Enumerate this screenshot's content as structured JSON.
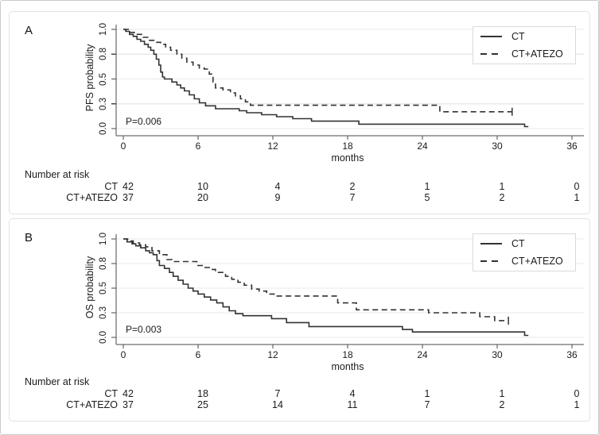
{
  "colors": {
    "curve": "#323232",
    "grid": "#e9e9eb",
    "axis": "#4a4a4a",
    "panel_border": "#e2e2e2",
    "outer_border": "#cbcbcb",
    "legend_border": "#dadada",
    "text": "#1b1b1b"
  },
  "chart_data": [
    {
      "type": "line",
      "subtype": "kaplan-meier-step",
      "letter": "A",
      "ylabel": "PFS probability",
      "xlabel": "months",
      "p_value": "P=0.006",
      "xlim": [
        0,
        36
      ],
      "ylim": [
        0,
        1
      ],
      "grid": true,
      "legend_position": "top-right",
      "x_ticks": [
        0,
        6,
        12,
        18,
        24,
        30,
        36
      ],
      "y_ticks": [
        {
          "label": "1.0",
          "value": 1.0
        },
        {
          "label": "0.8",
          "value": 0.75
        },
        {
          "label": "0.5",
          "value": 0.5
        },
        {
          "label": "0.3",
          "value": 0.25
        },
        {
          "label": "0.0",
          "value": 0.0
        }
      ],
      "series": [
        {
          "name": "CT",
          "line": "solid",
          "steps": [
            [
              0,
              1.0
            ],
            [
              0.2,
              0.98
            ],
            [
              0.5,
              0.95
            ],
            [
              0.8,
              0.93
            ],
            [
              1.1,
              0.9
            ],
            [
              1.4,
              0.88
            ],
            [
              1.7,
              0.85
            ],
            [
              2.0,
              0.82
            ],
            [
              2.2,
              0.79
            ],
            [
              2.45,
              0.75
            ],
            [
              2.65,
              0.7
            ],
            [
              2.85,
              0.64
            ],
            [
              3.0,
              0.57
            ],
            [
              3.15,
              0.52
            ],
            [
              3.3,
              0.5
            ],
            [
              3.9,
              0.47
            ],
            [
              4.3,
              0.44
            ],
            [
              4.6,
              0.41
            ],
            [
              4.9,
              0.38
            ],
            [
              5.3,
              0.34
            ],
            [
              5.7,
              0.3
            ],
            [
              6.1,
              0.26
            ],
            [
              6.6,
              0.23
            ],
            [
              7.4,
              0.2
            ],
            [
              9.3,
              0.18
            ],
            [
              9.9,
              0.16
            ],
            [
              11.1,
              0.14
            ],
            [
              12.3,
              0.12
            ],
            [
              13.6,
              0.1
            ],
            [
              15.1,
              0.075
            ],
            [
              18.9,
              0.045
            ],
            [
              32.2,
              0.02
            ],
            [
              32.5,
              0.02
            ]
          ],
          "censors": []
        },
        {
          "name": "CT+ATEZO",
          "line": "dashed",
          "steps": [
            [
              0,
              1.0
            ],
            [
              0.4,
              0.97
            ],
            [
              1.0,
              0.95
            ],
            [
              1.6,
              0.92
            ],
            [
              2.1,
              0.89
            ],
            [
              2.6,
              0.87
            ],
            [
              3.0,
              0.85
            ],
            [
              3.4,
              0.82
            ],
            [
              3.8,
              0.79
            ],
            [
              4.3,
              0.75
            ],
            [
              4.7,
              0.71
            ],
            [
              5.1,
              0.67
            ],
            [
              5.6,
              0.64
            ],
            [
              6.1,
              0.61
            ],
            [
              6.5,
              0.6
            ],
            [
              6.9,
              0.55
            ],
            [
              7.2,
              0.47
            ],
            [
              7.4,
              0.41
            ],
            [
              8.0,
              0.39
            ],
            [
              8.6,
              0.36
            ],
            [
              9.0,
              0.33
            ],
            [
              9.4,
              0.3
            ],
            [
              9.8,
              0.27
            ],
            [
              10.2,
              0.235
            ],
            [
              25.4,
              0.17
            ],
            [
              31.2,
              0.17
            ]
          ],
          "censors": [
            [
              31.2,
              0.17
            ]
          ]
        }
      ],
      "risk_table": {
        "title": "Number at risk",
        "rows": [
          {
            "label": "CT",
            "counts": [
              42,
              10,
              4,
              2,
              1,
              1,
              0
            ]
          },
          {
            "label": "CT+ATEZO",
            "counts": [
              37,
              20,
              9,
              7,
              5,
              2,
              1
            ]
          }
        ]
      }
    },
    {
      "type": "line",
      "subtype": "kaplan-meier-step",
      "letter": "B",
      "ylabel": "OS probability",
      "xlabel": "months",
      "p_value": "P=0.003",
      "xlim": [
        0,
        36
      ],
      "ylim": [
        0,
        1
      ],
      "grid": true,
      "legend_position": "top-right",
      "x_ticks": [
        0,
        6,
        12,
        18,
        24,
        30,
        36
      ],
      "y_ticks": [
        {
          "label": "1.0",
          "value": 1.0
        },
        {
          "label": "0.8",
          "value": 0.75
        },
        {
          "label": "0.5",
          "value": 0.5
        },
        {
          "label": "0.3",
          "value": 0.25
        },
        {
          "label": "0.0",
          "value": 0.0
        }
      ],
      "series": [
        {
          "name": "CT",
          "line": "solid",
          "steps": [
            [
              0,
              1.0
            ],
            [
              0.3,
              0.97
            ],
            [
              0.7,
              0.95
            ],
            [
              1.0,
              0.93
            ],
            [
              1.4,
              0.91
            ],
            [
              1.8,
              0.88
            ],
            [
              2.1,
              0.86
            ],
            [
              2.4,
              0.84
            ],
            [
              2.7,
              0.78
            ],
            [
              2.9,
              0.73
            ],
            [
              3.3,
              0.7
            ],
            [
              3.7,
              0.66
            ],
            [
              4.0,
              0.62
            ],
            [
              4.4,
              0.58
            ],
            [
              4.8,
              0.54
            ],
            [
              5.2,
              0.5
            ],
            [
              5.6,
              0.47
            ],
            [
              6.0,
              0.44
            ],
            [
              6.5,
              0.41
            ],
            [
              7.0,
              0.38
            ],
            [
              7.5,
              0.35
            ],
            [
              8.0,
              0.31
            ],
            [
              8.5,
              0.27
            ],
            [
              9.0,
              0.24
            ],
            [
              9.6,
              0.22
            ],
            [
              11.9,
              0.19
            ],
            [
              13.1,
              0.15
            ],
            [
              14.9,
              0.11
            ],
            [
              22.4,
              0.08
            ],
            [
              23.2,
              0.055
            ],
            [
              32.2,
              0.02
            ],
            [
              32.5,
              0.02
            ]
          ],
          "censors": []
        },
        {
          "name": "CT+ATEZO",
          "line": "dashed",
          "steps": [
            [
              0,
              1.0
            ],
            [
              0.35,
              0.98
            ],
            [
              0.8,
              0.96
            ],
            [
              1.3,
              0.94
            ],
            [
              1.8,
              0.92
            ],
            [
              2.3,
              0.88
            ],
            [
              2.9,
              0.84
            ],
            [
              3.5,
              0.79
            ],
            [
              3.9,
              0.77
            ],
            [
              5.9,
              0.73
            ],
            [
              6.4,
              0.71
            ],
            [
              6.9,
              0.69
            ],
            [
              7.4,
              0.66
            ],
            [
              8.2,
              0.62
            ],
            [
              8.7,
              0.59
            ],
            [
              9.2,
              0.56
            ],
            [
              9.7,
              0.53
            ],
            [
              10.3,
              0.49
            ],
            [
              10.9,
              0.47
            ],
            [
              11.5,
              0.44
            ],
            [
              12.1,
              0.42
            ],
            [
              17.2,
              0.35
            ],
            [
              18.7,
              0.28
            ],
            [
              24.5,
              0.25
            ],
            [
              28.6,
              0.21
            ],
            [
              29.8,
              0.17
            ],
            [
              30.9,
              0.17
            ]
          ],
          "censors": [
            [
              30.9,
              0.17
            ]
          ]
        }
      ],
      "risk_table": {
        "title": "Number at risk",
        "rows": [
          {
            "label": "CT",
            "counts": [
              42,
              18,
              7,
              4,
              1,
              1,
              0
            ]
          },
          {
            "label": "CT+ATEZO",
            "counts": [
              37,
              25,
              14,
              11,
              7,
              2,
              1
            ]
          }
        ]
      }
    }
  ]
}
